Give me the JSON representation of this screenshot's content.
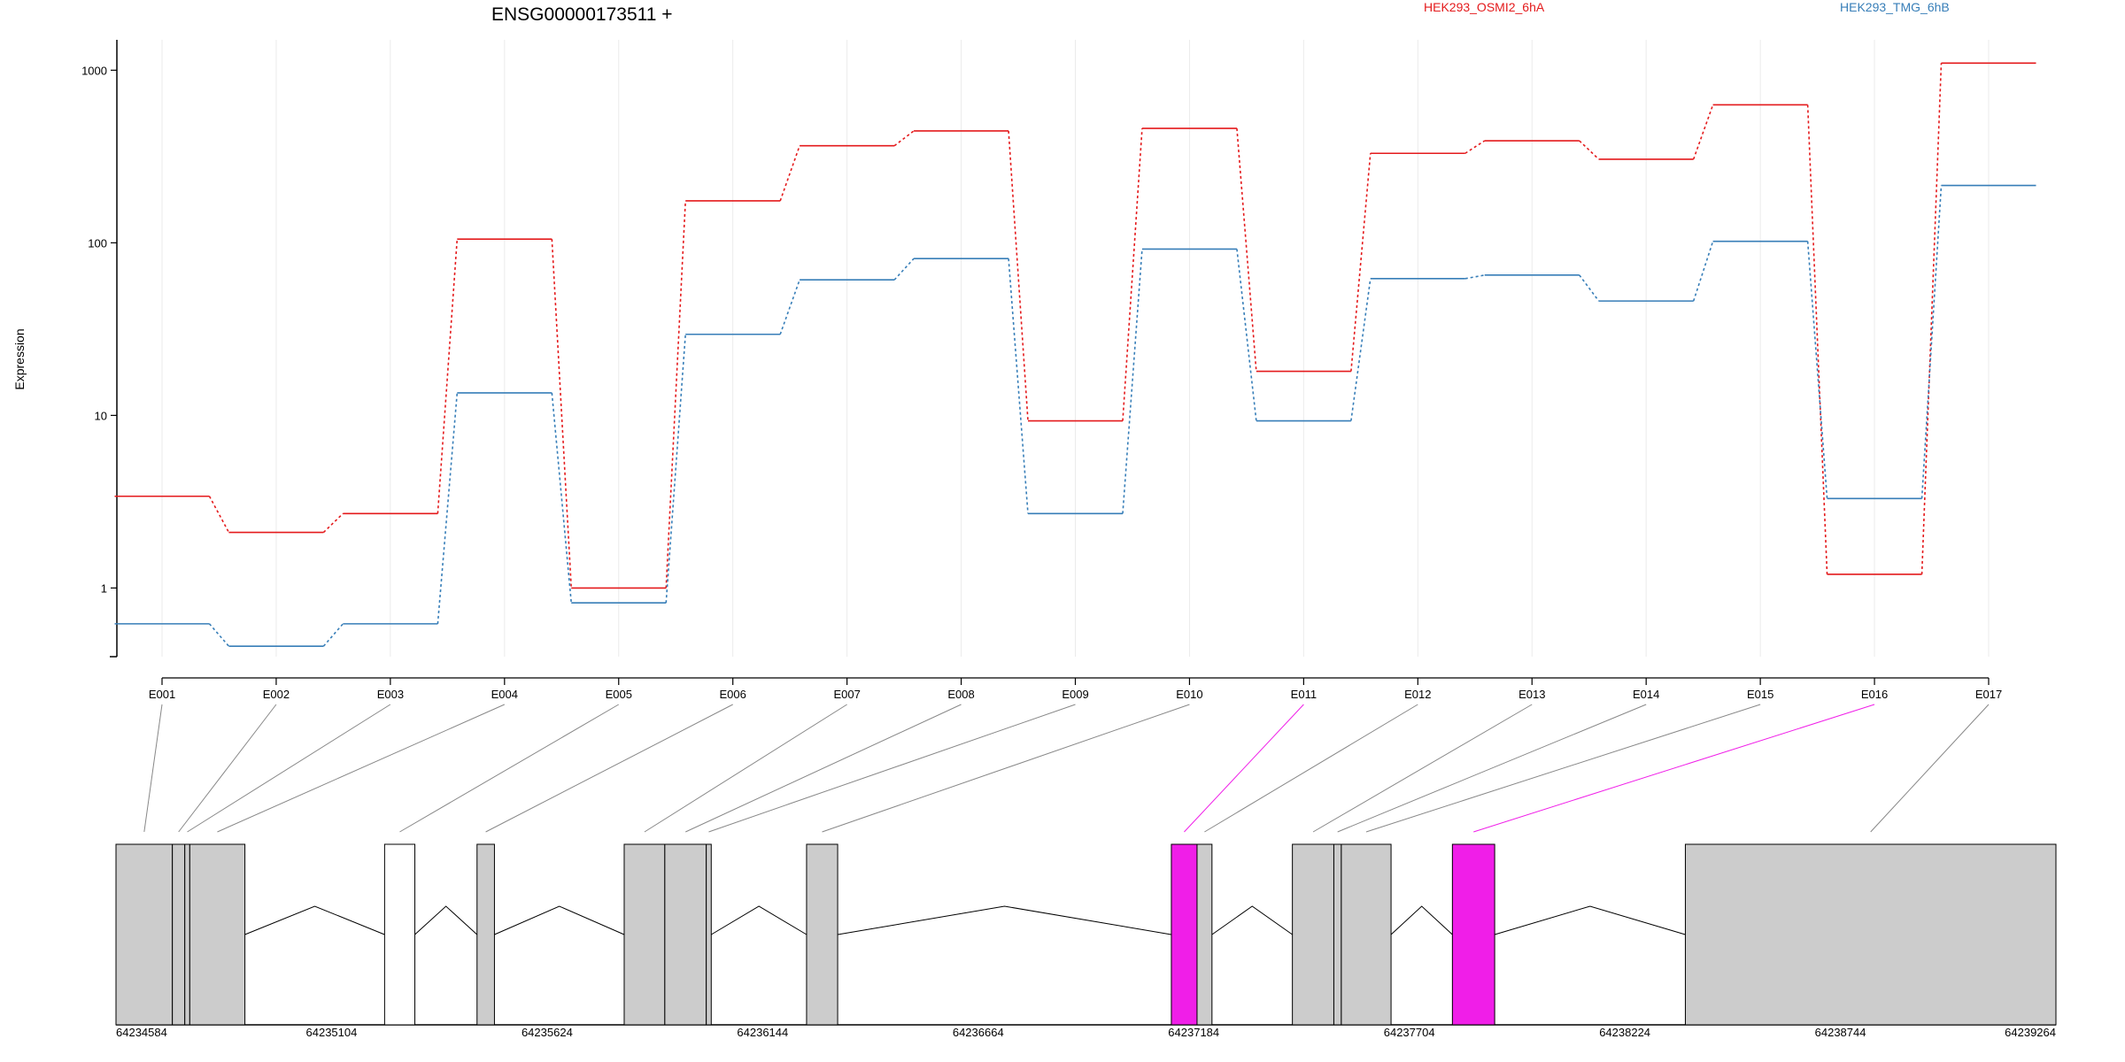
{
  "chart_data": {
    "type": "line",
    "title": "ENSG00000173511 +",
    "ylabel": "Expression",
    "yscale": "log",
    "yticks": [
      1,
      10,
      100,
      1000
    ],
    "ylim": [
      0.4,
      1500
    ],
    "grid": true,
    "legend_position": "top",
    "categories": [
      "E001",
      "E002",
      "E003",
      "E004",
      "E005",
      "E006",
      "E007",
      "E008",
      "E009",
      "E010",
      "E011",
      "E012",
      "E013",
      "E014",
      "E015",
      "E016",
      "E017"
    ],
    "series": [
      {
        "name": "HEK293_OSMI2_6hA",
        "color": "#e41a1c",
        "values": [
          3.4,
          2.1,
          2.7,
          105,
          1.0,
          175,
          365,
          445,
          9.3,
          460,
          18,
          330,
          390,
          305,
          630,
          1.2,
          1100
        ]
      },
      {
        "name": "HEK293_TMG_6hB",
        "color": "#377eb8",
        "values": [
          0.62,
          0.46,
          0.62,
          13.5,
          0.82,
          29.5,
          61,
          81,
          2.7,
          92,
          9.3,
          62,
          65,
          46,
          102,
          3.3,
          215
        ]
      }
    ],
    "gene_model": {
      "coordinate_ticks": [
        "64234584",
        "64235104",
        "64235624",
        "64236144",
        "64236664",
        "64237184",
        "64237704",
        "64238224",
        "64238744",
        "64239264"
      ],
      "start": 64234584,
      "end": 64239264,
      "highlight_color": "#f01ee8",
      "exon_color": "#cccccc",
      "exons": [
        {
          "id": "E001",
          "start": 64234584,
          "end": 64234720,
          "highlight": false
        },
        {
          "id": "E002",
          "start": 64234720,
          "end": 64234750,
          "highlight": false
        },
        {
          "id": "E003",
          "start": 64234750,
          "end": 64234762,
          "highlight": false
        },
        {
          "id": "E004",
          "start": 64234762,
          "end": 64234895,
          "highlight": false
        },
        {
          "id": "E005",
          "start": 64235232,
          "end": 64235305,
          "highlight": false,
          "unfilled": true
        },
        {
          "id": "E006",
          "start": 64235455,
          "end": 64235497,
          "highlight": false
        },
        {
          "id": "E007",
          "start": 64235810,
          "end": 64235908,
          "highlight": false
        },
        {
          "id": "E008",
          "start": 64235908,
          "end": 64236008,
          "highlight": false
        },
        {
          "id": "E009",
          "start": 64236008,
          "end": 64236020,
          "highlight": false
        },
        {
          "id": "E010",
          "start": 64236250,
          "end": 64236325,
          "highlight": false
        },
        {
          "id": "E011",
          "start": 64237130,
          "end": 64237192,
          "highlight": true
        },
        {
          "id": "E012",
          "start": 64237192,
          "end": 64237228,
          "highlight": false
        },
        {
          "id": "E013",
          "start": 64237422,
          "end": 64237522,
          "highlight": false
        },
        {
          "id": "E014",
          "start": 64237522,
          "end": 64237540,
          "highlight": false
        },
        {
          "id": "E015",
          "start": 64237540,
          "end": 64237660,
          "highlight": false
        },
        {
          "id": "E016",
          "start": 64237808,
          "end": 64237910,
          "highlight": true
        },
        {
          "id": "E017",
          "start": 64238370,
          "end": 64239264,
          "highlight": false
        }
      ]
    }
  }
}
